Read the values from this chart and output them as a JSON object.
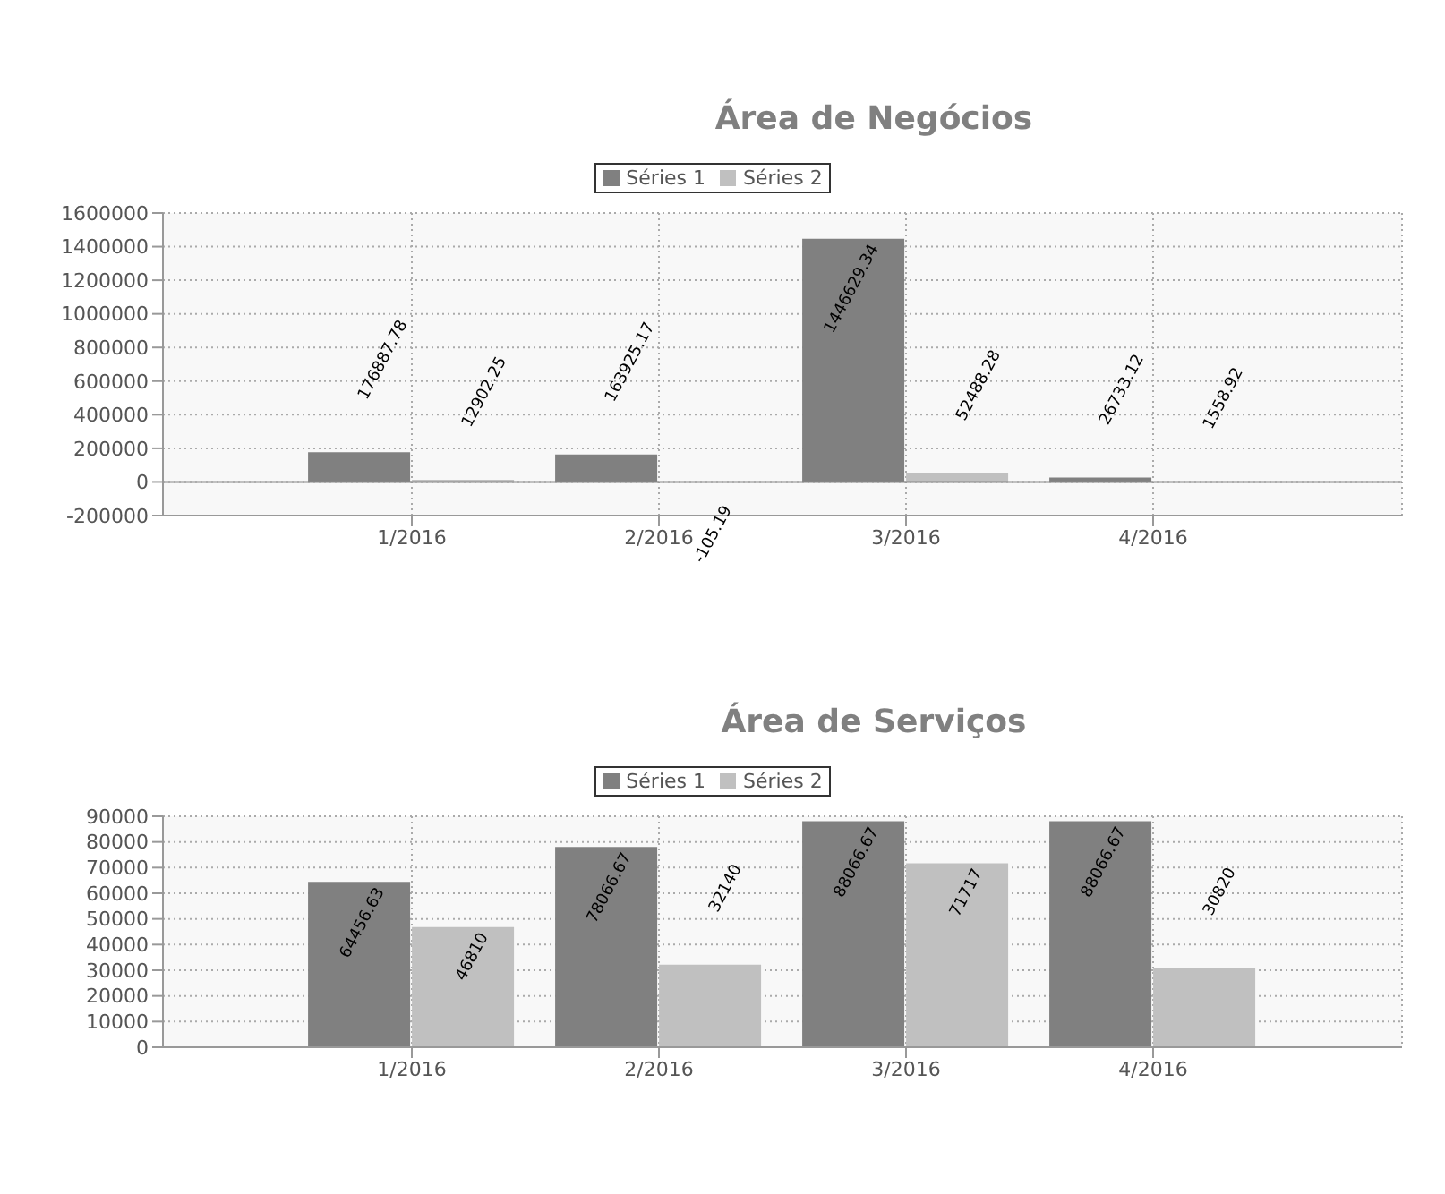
{
  "chart_data": [
    {
      "type": "bar",
      "title": "Área de Negócios",
      "categories": [
        "1/2016",
        "2/2016",
        "3/2016",
        "4/2016"
      ],
      "series": [
        {
          "name": "Séries 1",
          "color": "#808080",
          "values": [
            176887.78,
            163925.17,
            1446629.34,
            26733.12
          ]
        },
        {
          "name": "Séries 2",
          "color": "#c0c0c0",
          "values": [
            12902.25,
            -105.19,
            52488.28,
            1558.92
          ]
        }
      ],
      "ylim": [
        -200000,
        1600000
      ],
      "yticks": [
        -200000,
        0,
        200000,
        400000,
        600000,
        800000,
        1000000,
        1200000,
        1400000,
        1600000
      ],
      "grid": true,
      "legend": "top",
      "data_labels": true
    },
    {
      "type": "bar",
      "title": "Área de Serviços",
      "categories": [
        "1/2016",
        "2/2016",
        "3/2016",
        "4/2016"
      ],
      "series": [
        {
          "name": "Séries 1",
          "color": "#808080",
          "values": [
            64456.63,
            78066.67,
            88066.67,
            88066.67
          ]
        },
        {
          "name": "Séries 2",
          "color": "#c0c0c0",
          "values": [
            46810,
            32140,
            71717,
            30820
          ]
        }
      ],
      "ylim": [
        0,
        90000
      ],
      "yticks": [
        0,
        10000,
        20000,
        30000,
        40000,
        50000,
        60000,
        70000,
        80000,
        90000
      ],
      "grid": true,
      "legend": "top",
      "data_labels": true
    }
  ]
}
